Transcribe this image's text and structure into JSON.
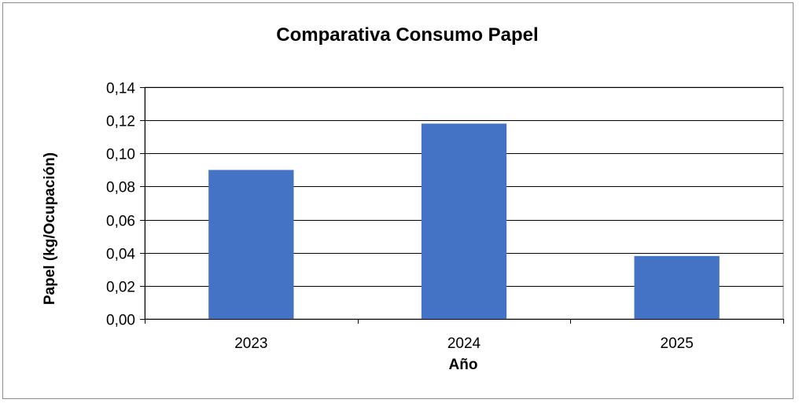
{
  "chart_data": {
    "type": "bar",
    "title": "Comparativa Consumo Papel",
    "xlabel": "Año",
    "ylabel": "Papel (kg/Ocupación)",
    "categories": [
      "2023",
      "2024",
      "2025"
    ],
    "values": [
      0.09,
      0.118,
      0.038
    ],
    "ylim": [
      0,
      0.14
    ],
    "yticks": [
      0.0,
      0.02,
      0.04,
      0.06,
      0.08,
      0.1,
      0.12,
      0.14
    ],
    "ytick_labels": [
      "0,00",
      "0,02",
      "0,04",
      "0,06",
      "0,08",
      "0,10",
      "0,12",
      "0,14"
    ],
    "grid": "horizontal",
    "legend": "none",
    "bar_color": "#4472C4"
  }
}
